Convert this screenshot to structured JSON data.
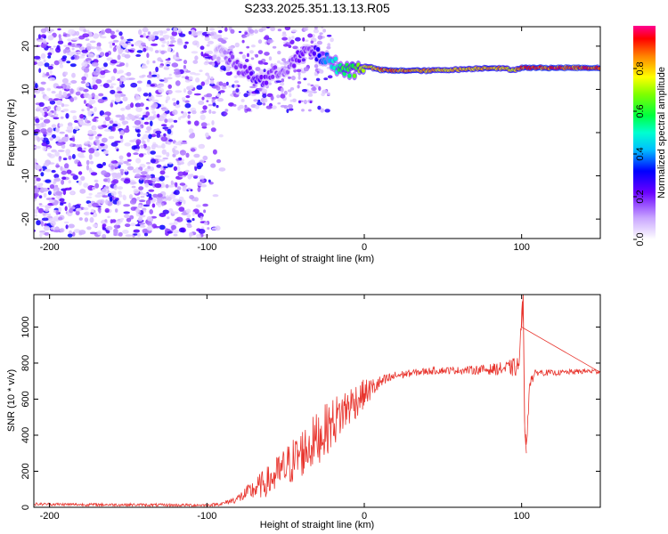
{
  "title": "S233.2025.351.13.13.R05",
  "chart_data": [
    {
      "type": "heatmap",
      "xlabel": "Height of straight line (km)",
      "ylabel": "Frequency (Hz)",
      "xlim": [
        -210,
        150
      ],
      "ylim": [
        -24.5,
        24.5
      ],
      "xticks": [
        -200,
        -100,
        0,
        100
      ],
      "xtick_labels": [
        "-200",
        "-100",
        "0",
        "100"
      ],
      "yticks": [
        20,
        10,
        0,
        -10,
        -20
      ],
      "ytick_labels": [
        "20",
        "10",
        "0",
        "-10",
        "-20"
      ],
      "colorbar": {
        "label": "Normalized spectral amplitude",
        "range": [
          0.0,
          1.0
        ],
        "ticks": [
          0.0,
          0.2,
          0.4,
          0.6,
          0.8
        ],
        "tick_labels": [
          "0.0",
          "0.2",
          "0.4",
          "0.6",
          "0.8"
        ]
      },
      "noise_region": {
        "x": [
          -210,
          -90
        ],
        "frequency_range": [
          -24,
          24
        ],
        "amplitude": 0.05
      },
      "signal_ridge": {
        "x": [
          -95,
          -90,
          -85,
          -80,
          -75,
          -70,
          -65,
          -60,
          -55,
          -50,
          -45,
          -40,
          -35,
          -30,
          -25,
          -20,
          -15,
          -10,
          -5,
          0,
          5,
          10,
          20,
          30,
          40,
          50,
          60,
          70,
          80,
          90,
          95,
          100,
          110,
          120,
          130,
          140,
          150
        ],
        "frequency": [
          19,
          18,
          17,
          15,
          14,
          13,
          12,
          13,
          14,
          15,
          16,
          18,
          19,
          18,
          17,
          16,
          15,
          14.5,
          14.5,
          15.5,
          15,
          14.5,
          14.3,
          14.4,
          14.3,
          14.5,
          14.6,
          14.8,
          15,
          14.8,
          14.5,
          15,
          15,
          15,
          15,
          15,
          15
        ],
        "amplitude": [
          0.1,
          0.12,
          0.2,
          0.2,
          0.22,
          0.25,
          0.25,
          0.2,
          0.2,
          0.15,
          0.2,
          0.25,
          0.2,
          0.3,
          0.4,
          0.5,
          0.6,
          0.65,
          0.7,
          0.8,
          0.85,
          0.9,
          0.95,
          0.9,
          0.9,
          0.85,
          0.85,
          0.85,
          0.9,
          0.85,
          0.8,
          0.95,
          0.97,
          0.97,
          0.97,
          0.97,
          0.97
        ]
      }
    },
    {
      "type": "line",
      "xlabel": "Height of straight line (km)",
      "ylabel": "SNR (10 * v/v)",
      "xlim": [
        -210,
        150
      ],
      "ylim": [
        0,
        1180
      ],
      "xticks": [
        -200,
        -100,
        0,
        100
      ],
      "xtick_labels": [
        "-200",
        "-100",
        "0",
        "100"
      ],
      "yticks": [
        0,
        200,
        400,
        600,
        800,
        1000
      ],
      "ytick_labels": [
        "0",
        "200",
        "400",
        "600",
        "800",
        "1000"
      ],
      "color": "#e8352e",
      "series": [
        {
          "x": [
            -210,
            -180,
            -150,
            -120,
            -100,
            -90,
            -80,
            -70,
            -60,
            -50,
            -40,
            -30,
            -20,
            -10,
            0,
            10,
            20,
            30,
            40,
            50,
            60,
            70,
            80,
            90,
            98,
            100,
            101,
            102,
            103,
            105,
            110,
            120,
            130,
            140,
            150
          ],
          "y": [
            18,
            15,
            14,
            12,
            12,
            20,
            50,
            100,
            150,
            220,
            300,
            380,
            470,
            560,
            630,
            690,
            730,
            745,
            755,
            760,
            760,
            762,
            765,
            770,
            780,
            1000,
            1180,
            420,
            300,
            700,
            750,
            745,
            750,
            755,
            755
          ],
          "noise_amplitude": [
            8,
            8,
            8,
            8,
            8,
            10,
            25,
            60,
            90,
            120,
            140,
            150,
            140,
            120,
            80,
            40,
            25,
            20,
            20,
            20,
            20,
            25,
            30,
            40,
            60,
            80,
            60,
            60,
            60,
            40,
            20,
            15,
            15,
            15,
            15
          ]
        }
      ]
    }
  ]
}
